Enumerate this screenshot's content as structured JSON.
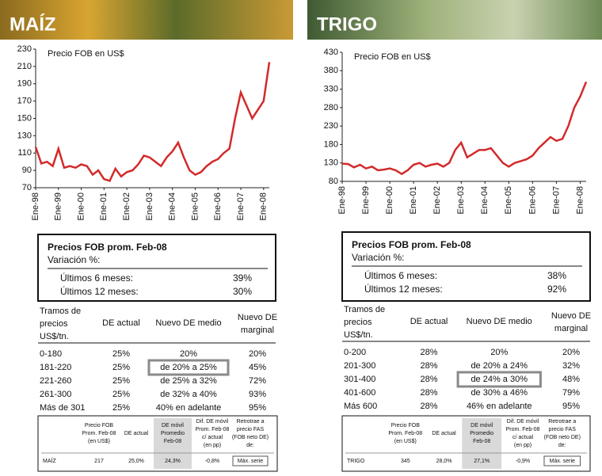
{
  "chart_data": [
    {
      "type": "line",
      "title": "Precio FOB en US$",
      "color": "#d32a2a",
      "grid": false,
      "categories": [
        "Ene-98",
        null,
        null,
        null,
        "Ene-99",
        null,
        null,
        null,
        "Ene-00",
        null,
        null,
        null,
        "Ene-01",
        null,
        null,
        null,
        "Ene-02",
        null,
        null,
        null,
        "Ene-03",
        null,
        null,
        null,
        "Ene-04",
        null,
        null,
        null,
        "Ene-05",
        null,
        null,
        null,
        "Ene-06",
        null,
        null,
        null,
        "Ene-07",
        null,
        null,
        null,
        "Ene-08",
        null
      ],
      "values": [
        117,
        98,
        100,
        95,
        115,
        93,
        95,
        93,
        97,
        95,
        85,
        90,
        80,
        78,
        92,
        83,
        88,
        90,
        97,
        107,
        105,
        100,
        95,
        105,
        112,
        122,
        105,
        90,
        85,
        88,
        95,
        100,
        103,
        110,
        115,
        150,
        180,
        165,
        150,
        160,
        170,
        215
      ],
      "ylim": [
        70,
        230
      ],
      "yticks": [
        70,
        90,
        110,
        130,
        150,
        170,
        190,
        210,
        230
      ]
    },
    {
      "type": "line",
      "title": "Precio FOB en US$",
      "color": "#d32a2a",
      "grid": false,
      "categories": [
        "Ene-98",
        null,
        null,
        null,
        "Ene-99",
        null,
        null,
        null,
        "Ene-00",
        null,
        null,
        null,
        "Ene-01",
        null,
        null,
        null,
        "Ene-02",
        null,
        null,
        null,
        "Ene-03",
        null,
        null,
        null,
        "Ene-04",
        null,
        null,
        null,
        "Ene-05",
        null,
        null,
        null,
        "Ene-06",
        null,
        null,
        null,
        "Ene-07",
        null,
        null,
        null,
        "Ene-08",
        null
      ],
      "values": [
        128,
        127,
        118,
        125,
        115,
        120,
        110,
        112,
        115,
        110,
        100,
        110,
        125,
        130,
        120,
        125,
        128,
        120,
        130,
        165,
        185,
        145,
        155,
        165,
        165,
        170,
        150,
        130,
        120,
        130,
        135,
        140,
        150,
        170,
        185,
        200,
        190,
        195,
        230,
        280,
        310,
        350
      ],
      "ylim": [
        80,
        430
      ],
      "yticks": [
        80,
        130,
        180,
        230,
        280,
        330,
        380,
        430
      ]
    }
  ],
  "panels": [
    {
      "heading": "MAÍZ",
      "summary": {
        "title": "Precios FOB prom. Feb-08",
        "subtitle": "Variación %:",
        "rows": [
          [
            "Últimos 6 meses:",
            "39%"
          ],
          [
            "Últimos 12 meses:",
            "30%"
          ]
        ]
      },
      "tramos": {
        "headers": [
          [
            "Tramos de",
            "precios",
            "US$/tn."
          ],
          [
            "DE actual"
          ],
          [
            "Nuevo DE medio"
          ],
          [
            "Nuevo DE",
            "marginal"
          ]
        ],
        "highlight": 1,
        "rows": [
          [
            "0-180",
            "25%",
            "20%",
            "20%"
          ],
          [
            "181-220",
            "25%",
            "de 20% a 25%",
            "45%"
          ],
          [
            "221-260",
            "25%",
            "de 25% a 32%",
            "72%"
          ],
          [
            "261-300",
            "25%",
            "de 32% a 40%",
            "93%"
          ],
          [
            "Más de 301",
            "25%",
            "40% en adelante",
            "95%"
          ]
        ]
      },
      "detail": {
        "headers": [
          [
            "Precio FOB",
            "Prom. Feb-08",
            "(en US$)"
          ],
          [
            "DE actual"
          ],
          [
            "DE móvil",
            "Promedio",
            "Feb-08"
          ],
          [
            "Dif. DE móvil",
            "Prom. Feb-08",
            "c/ actual",
            "(en pp)"
          ],
          [
            "Retrotrae a",
            "precio FAS",
            "(FOB neto DE)",
            "de:"
          ]
        ],
        "row": [
          "MAÍZ",
          "217",
          "25,0%",
          "24,3%",
          "-0,8%",
          "Máx. serie"
        ]
      }
    },
    {
      "heading": "TRIGO",
      "summary": {
        "title": "Precios FOB prom. Feb-08",
        "subtitle": "Variación %:",
        "rows": [
          [
            "Últimos 6 meses:",
            "38%"
          ],
          [
            "Últimos 12 meses:",
            "92%"
          ]
        ]
      },
      "tramos": {
        "headers": [
          [
            "Tramos de",
            "precios",
            "US$/tn."
          ],
          [
            "DE actual"
          ],
          [
            "Nuevo DE medio"
          ],
          [
            "Nuevo DE",
            "marginal"
          ]
        ],
        "highlight": 2,
        "rows": [
          [
            "0-200",
            "28%",
            "20%",
            "20%"
          ],
          [
            "201-300",
            "28%",
            "de 20% a 24%",
            "32%"
          ],
          [
            "301-400",
            "28%",
            "de 24% a 30%",
            "48%"
          ],
          [
            "401-600",
            "28%",
            "de 30% a 46%",
            "79%"
          ],
          [
            "Más 600",
            "28%",
            "46% en adelante",
            "95%"
          ]
        ]
      },
      "detail": {
        "headers": [
          [
            "Precio FOB",
            "Prom. Feb-08",
            "(en US$)"
          ],
          [
            "DE actual"
          ],
          [
            "DE móvil",
            "Promedio",
            "Feb-08"
          ],
          [
            "Dif. DE móvil",
            "Prom. Feb-08",
            "c/ actual",
            "(en pp)"
          ],
          [
            "Retrotrae a",
            "precio FAS",
            "(FOB neto DE)",
            "de:"
          ]
        ],
        "row": [
          "TRIGO",
          "345",
          "28,0%",
          "27,1%",
          "-0,9%",
          "Máx. serie"
        ]
      }
    }
  ]
}
